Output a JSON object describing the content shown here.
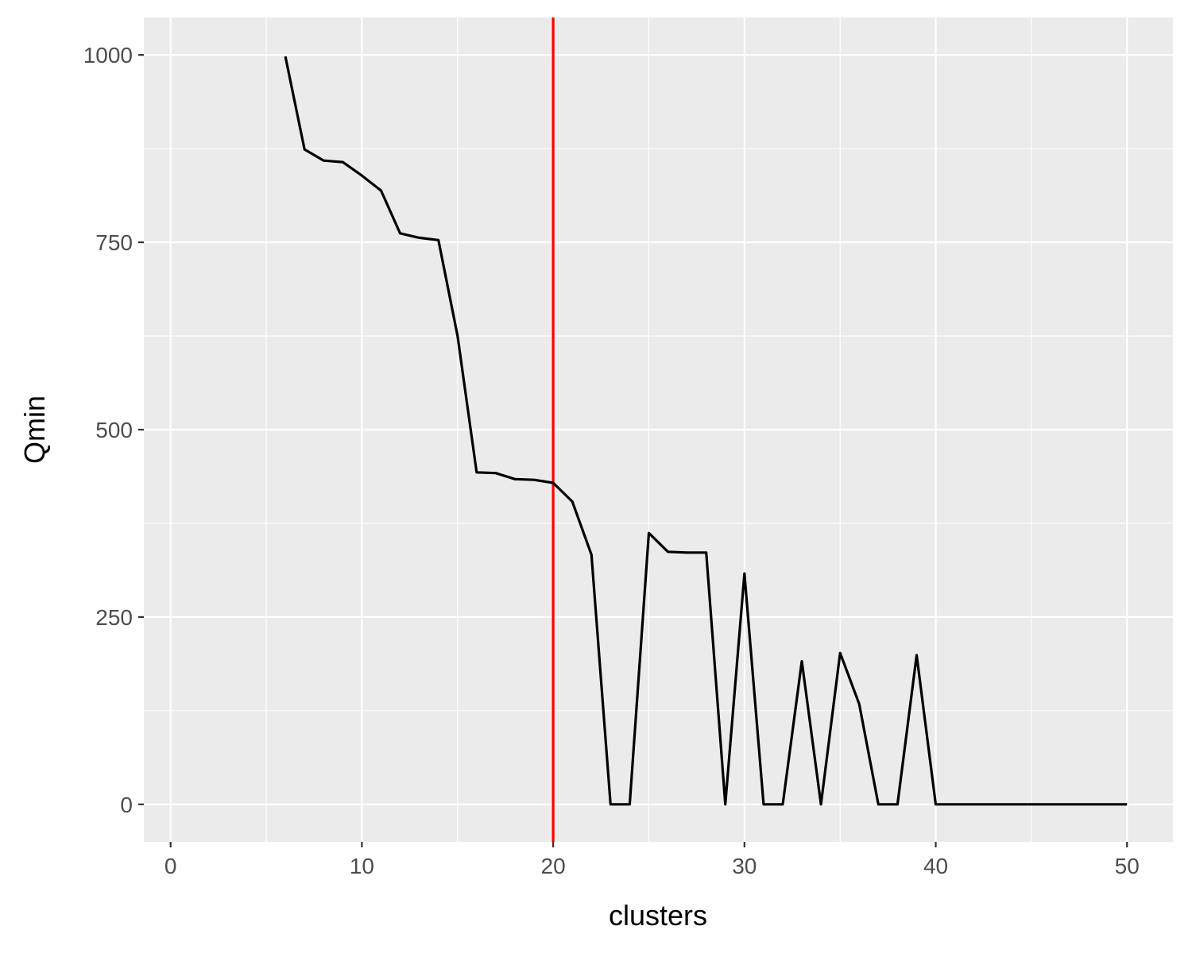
{
  "chart_data": {
    "type": "line",
    "xlabel": "clusters",
    "ylabel": "Qmin",
    "xlim": [
      -1.4,
      52.4
    ],
    "ylim": [
      -50,
      1050
    ],
    "x_ticks": [
      0,
      10,
      20,
      30,
      40,
      50
    ],
    "x_tick_labels": [
      "0",
      "10",
      "20",
      "30",
      "40",
      "50"
    ],
    "y_ticks": [
      0,
      250,
      500,
      750,
      1000
    ],
    "y_tick_labels": [
      "0",
      "250",
      "500",
      "750",
      "1000"
    ],
    "grid": true,
    "series": [
      {
        "color": "#000000",
        "x": [
          6,
          7,
          8,
          9,
          10,
          11,
          12,
          13,
          14,
          15,
          16,
          17,
          18,
          19,
          20,
          21,
          22,
          23,
          24,
          25,
          26,
          27,
          28,
          29,
          30,
          31,
          32,
          33,
          34,
          35,
          36,
          37,
          38,
          39,
          40,
          41,
          42,
          43,
          44,
          45,
          46,
          47,
          48,
          49,
          50
        ],
        "y": [
          998,
          874,
          859,
          857,
          839,
          819,
          762,
          756,
          753,
          625,
          443,
          442,
          434,
          433,
          429,
          404,
          333,
          0,
          0,
          362,
          337,
          336,
          336,
          0,
          308,
          0,
          0,
          191,
          0,
          202,
          134,
          0,
          0,
          199,
          0,
          0,
          0,
          0,
          0,
          0,
          0,
          0,
          0,
          0,
          0
        ]
      }
    ],
    "reference_lines": [
      {
        "orientation": "vertical",
        "x": 20,
        "color": "#ff0000"
      }
    ],
    "background_color": "#ebebeb",
    "grid_color": "#ffffff"
  }
}
